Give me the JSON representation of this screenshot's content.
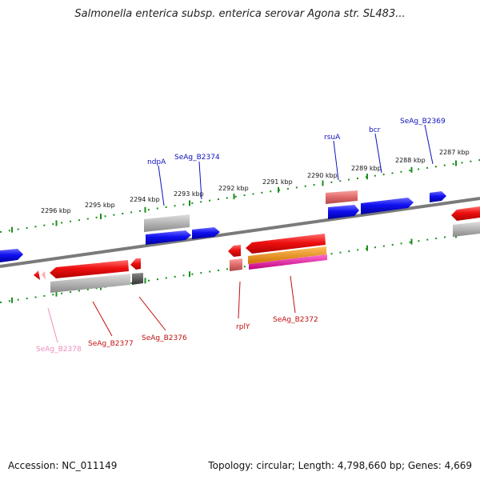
{
  "title": "Salmonella enterica subsp. enterica serovar Agona str. SL483...",
  "accession": "Accession: NC_011149",
  "summary": "Topology: circular; Length: 4,798,660 bp; Genes: 4,669",
  "colors": {
    "backbone": "#808080",
    "tick": "#1a8f1a",
    "red_gene": "#e01010",
    "blue_gene": "#1010e0",
    "gray_feature": "#b0b0b0",
    "pink_feature": "#e07070",
    "orange_feature": "#f08c00",
    "magenta_feature": "#e020a0",
    "label_blue": "#1010c0",
    "label_red": "#c01010",
    "label_pink": "#f08cc0"
  },
  "kbp_labels": [
    "2296 kbp",
    "2295 kbp",
    "2294 kbp",
    "2293 kbp",
    "2292 kbp",
    "2291 kbp",
    "2290 kbp",
    "2289 kbp",
    "2288 kbp",
    "2287 kbp"
  ],
  "gene_labels": {
    "top": [
      "ndpA",
      "SeAg_B2374",
      "rsuA",
      "bcr",
      "SeAg_B2369"
    ],
    "bottom": [
      "SeAg_B2378",
      "SeAg_B2377",
      "SeAg_B2376",
      "rplY",
      "SeAg_B2372"
    ]
  }
}
